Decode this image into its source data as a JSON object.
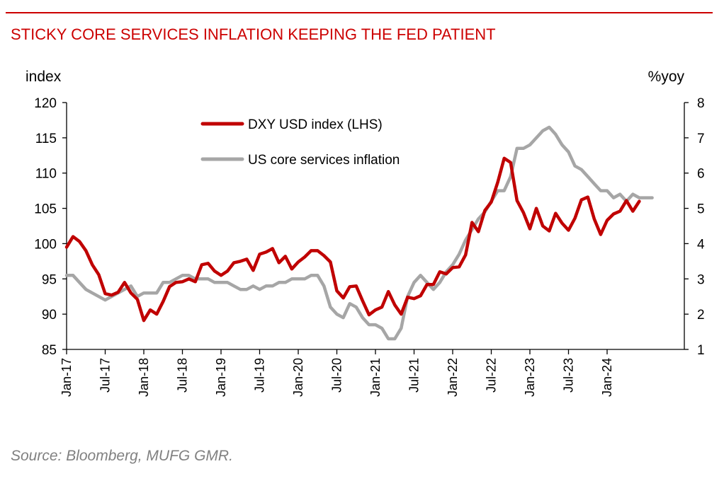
{
  "title": "STICKY CORE SERVICES INFLATION KEEPING THE FED PATIENT",
  "source": "Source: Bloomberg, MUFG GMR.",
  "colors": {
    "accent": "#cc0000",
    "dxy": "#c00000",
    "services": "#a6a6a6",
    "source_text": "#808080"
  },
  "chart_data": {
    "type": "line",
    "left_axis_label": "index",
    "right_axis_label": "%yoy",
    "left_ylim": [
      85,
      120
    ],
    "left_ticks": [
      "85",
      "90",
      "95",
      "100",
      "105",
      "110",
      "115",
      "120"
    ],
    "right_ylim": [
      1,
      8
    ],
    "right_ticks": [
      "1",
      "2",
      "3",
      "4",
      "5",
      "6",
      "7",
      "8"
    ],
    "x_start": "2017-01",
    "x_tick_labels": [
      "Jan-17",
      "Jul-17",
      "Jan-18",
      "Jul-18",
      "Jan-19",
      "Jul-19",
      "Jan-20",
      "Jul-20",
      "Jan-21",
      "Jul-21",
      "Jan-22",
      "Jul-22",
      "Jan-23",
      "Jul-23",
      "Jan-24"
    ],
    "legend_position": "top-left",
    "grid": false,
    "series": [
      {
        "name": "DXY USD index (LHS)",
        "axis": "left",
        "start": "2017-01",
        "values": [
          99.5,
          101.0,
          100.3,
          99.0,
          97.0,
          95.6,
          92.9,
          92.7,
          93.1,
          94.5,
          93.0,
          92.1,
          89.1,
          90.6,
          90.0,
          91.8,
          93.9,
          94.5,
          94.6,
          95.0,
          94.6,
          97.0,
          97.2,
          96.1,
          95.5,
          96.1,
          97.3,
          97.5,
          97.8,
          96.2,
          98.5,
          98.8,
          99.3,
          97.3,
          98.2,
          96.4,
          97.4,
          98.1,
          99.0,
          99.0,
          98.3,
          97.4,
          93.3,
          92.3,
          93.9,
          94.0,
          91.9,
          89.9,
          90.6,
          91.0,
          93.2,
          91.3,
          90.0,
          92.4,
          92.2,
          92.6,
          94.2,
          94.2,
          96.0,
          95.7,
          96.6,
          96.7,
          98.4,
          103.0,
          101.7,
          104.7,
          105.9,
          108.7,
          112.1,
          111.5,
          106.1,
          104.4,
          102.1,
          105.0,
          102.5,
          101.8,
          104.3,
          102.9,
          101.9,
          103.6,
          106.2,
          106.6,
          103.5,
          101.3,
          103.3,
          104.2,
          104.6,
          106.1,
          104.6,
          106.0
        ]
      },
      {
        "name": "US core services inflation",
        "axis": "right",
        "start": "2017-01",
        "values": [
          3.1,
          3.1,
          2.9,
          2.7,
          2.6,
          2.5,
          2.4,
          2.5,
          2.6,
          2.7,
          2.8,
          2.5,
          2.6,
          2.6,
          2.6,
          2.9,
          2.9,
          3.0,
          3.1,
          3.1,
          3.0,
          3.0,
          3.0,
          2.9,
          2.9,
          2.9,
          2.8,
          2.7,
          2.7,
          2.8,
          2.7,
          2.8,
          2.8,
          2.9,
          2.9,
          3.0,
          3.0,
          3.0,
          3.1,
          3.1,
          2.8,
          2.2,
          2.0,
          1.9,
          2.3,
          2.2,
          1.9,
          1.7,
          1.7,
          1.6,
          1.3,
          1.3,
          1.6,
          2.5,
          2.9,
          3.1,
          2.9,
          2.7,
          2.9,
          3.2,
          3.4,
          3.7,
          4.1,
          4.4,
          4.7,
          4.9,
          5.2,
          5.5,
          5.5,
          5.9,
          6.7,
          6.7,
          6.8,
          7.0,
          7.2,
          7.3,
          7.1,
          6.8,
          6.6,
          6.2,
          6.1,
          5.9,
          5.7,
          5.5,
          5.5,
          5.3,
          5.4,
          5.2,
          5.4,
          5.3,
          5.3,
          5.3
        ]
      }
    ]
  }
}
